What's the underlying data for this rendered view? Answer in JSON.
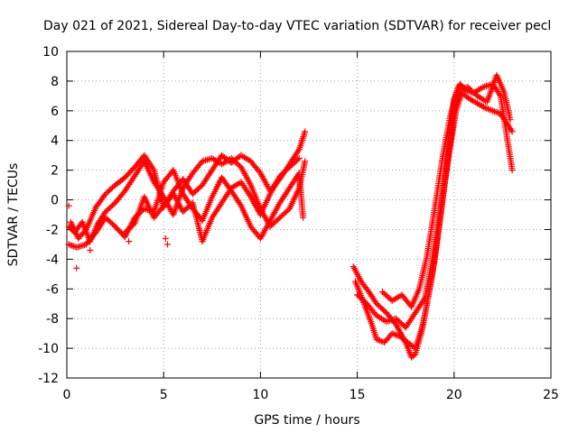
{
  "chart_data": {
    "type": "scatter",
    "title": "Day 021 of 2021, Sidereal Day-to-day VTEC variation (SDTVAR) for receiver pecl",
    "xlabel": "GPS time / hours",
    "ylabel": "SDTVAR / TECUs",
    "xlim": [
      0,
      25
    ],
    "ylim": [
      -12,
      10
    ],
    "xticks": [
      0,
      5,
      10,
      15,
      20,
      25
    ],
    "yticks": [
      -12,
      -10,
      -8,
      -6,
      -4,
      -2,
      0,
      2,
      4,
      6,
      8,
      10
    ],
    "grid": true,
    "marker": "plus",
    "series": [
      {
        "name": "SDTVAR",
        "color": "#ff0000",
        "tracks": [
          [
            [
              0.1,
              -1.8
            ],
            [
              0.4,
              -2.2
            ],
            [
              0.8,
              -1.5
            ],
            [
              1.2,
              -2.8
            ],
            [
              1.6,
              -1.6
            ],
            [
              2.0,
              -0.8
            ],
            [
              2.5,
              -0.2
            ],
            [
              3.0,
              0.6
            ],
            [
              3.5,
              1.6
            ],
            [
              4.0,
              2.6
            ],
            [
              4.5,
              1.2
            ],
            [
              5.0,
              0.2
            ],
            [
              5.5,
              -1.0
            ],
            [
              6.0,
              0.8
            ],
            [
              6.5,
              1.8
            ],
            [
              7.0,
              2.6
            ],
            [
              7.5,
              2.8
            ],
            [
              8.0,
              2.4
            ],
            [
              8.5,
              2.8
            ],
            [
              9.0,
              2.2
            ],
            [
              9.5,
              1.0
            ],
            [
              10.0,
              -0.6
            ],
            [
              10.5,
              -1.8
            ],
            [
              11.0,
              -1.2
            ],
            [
              11.5,
              -0.6
            ],
            [
              12.0,
              0.8
            ],
            [
              12.3,
              2.6
            ]
          ],
          [
            [
              0.1,
              -3.0
            ],
            [
              0.5,
              -3.2
            ],
            [
              1.0,
              -3.0
            ],
            [
              1.5,
              -2.2
            ],
            [
              2.0,
              -1.2
            ],
            [
              2.5,
              -1.8
            ],
            [
              3.0,
              -2.5
            ],
            [
              3.5,
              -1.2
            ],
            [
              4.0,
              -0.6
            ],
            [
              4.5,
              -0.8
            ],
            [
              5.0,
              1.2
            ],
            [
              5.5,
              2.0
            ],
            [
              6.0,
              0.4
            ],
            [
              6.5,
              -0.6
            ],
            [
              7.0,
              -1.4
            ],
            [
              7.5,
              0.2
            ],
            [
              8.0,
              1.5
            ],
            [
              8.5,
              0.6
            ],
            [
              9.0,
              -0.4
            ],
            [
              9.5,
              -1.8
            ],
            [
              10.0,
              -2.6
            ],
            [
              10.5,
              -1.4
            ],
            [
              11.0,
              -0.2
            ],
            [
              11.5,
              0.8
            ],
            [
              12.0,
              1.8
            ],
            [
              12.2,
              -1.2
            ]
          ],
          [
            [
              0.2,
              -1.5
            ],
            [
              0.6,
              -2.6
            ],
            [
              1.0,
              -2.0
            ],
            [
              1.5,
              -0.5
            ],
            [
              2.0,
              0.4
            ],
            [
              2.5,
              1.0
            ],
            [
              3.0,
              1.5
            ],
            [
              3.5,
              2.2
            ],
            [
              4.0,
              3.0
            ],
            [
              4.5,
              2.0
            ],
            [
              5.0,
              -0.5
            ],
            [
              5.5,
              0.6
            ],
            [
              6.0,
              1.4
            ],
            [
              6.5,
              0.4
            ],
            [
              7.0,
              1.0
            ],
            [
              7.5,
              2.0
            ],
            [
              8.0,
              3.0
            ],
            [
              8.5,
              2.5
            ],
            [
              9.0,
              3.0
            ],
            [
              9.5,
              2.6
            ],
            [
              10.0,
              1.8
            ],
            [
              10.5,
              0.6
            ],
            [
              11.0,
              1.4
            ],
            [
              11.5,
              2.4
            ],
            [
              12.0,
              3.4
            ],
            [
              12.3,
              4.6
            ]
          ],
          [
            [
              3.0,
              -2.2
            ],
            [
              3.5,
              -1.6
            ],
            [
              4.0,
              0.2
            ],
            [
              4.5,
              -1.2
            ],
            [
              5.0,
              -0.4
            ],
            [
              5.5,
              0.4
            ],
            [
              6.0,
              -0.8
            ],
            [
              6.5,
              -0.2
            ],
            [
              7.0,
              -2.8
            ],
            [
              7.5,
              -1.2
            ],
            [
              8.0,
              -0.2
            ],
            [
              8.5,
              0.8
            ],
            [
              9.0,
              1.2
            ],
            [
              9.5,
              0.2
            ],
            [
              10.0,
              -1.0
            ],
            [
              10.5,
              0.4
            ],
            [
              11.0,
              1.6
            ],
            [
              11.5,
              2.2
            ],
            [
              12.0,
              2.8
            ]
          ],
          [
            [
              14.8,
              -4.5
            ],
            [
              15.2,
              -5.5
            ],
            [
              15.6,
              -6.2
            ],
            [
              16.0,
              -7.0
            ],
            [
              16.5,
              -7.6
            ],
            [
              17.0,
              -8.4
            ],
            [
              17.5,
              -9.6
            ],
            [
              17.8,
              -10.6
            ],
            [
              18.0,
              -10.4
            ],
            [
              18.3,
              -9.0
            ],
            [
              18.6,
              -7.0
            ],
            [
              19.0,
              -4.0
            ],
            [
              19.3,
              -1.0
            ],
            [
              19.6,
              2.0
            ],
            [
              19.8,
              4.5
            ],
            [
              20.0,
              6.8
            ],
            [
              20.3,
              7.8
            ],
            [
              20.6,
              7.4
            ],
            [
              21.0,
              7.2
            ],
            [
              21.5,
              7.6
            ],
            [
              22.0,
              7.8
            ],
            [
              22.4,
              7.0
            ],
            [
              22.7,
              4.5
            ],
            [
              23.0,
              2.0
            ]
          ],
          [
            [
              14.9,
              -5.5
            ],
            [
              15.3,
              -6.8
            ],
            [
              15.7,
              -8.2
            ],
            [
              16.0,
              -9.4
            ],
            [
              16.4,
              -9.6
            ],
            [
              16.8,
              -9.0
            ],
            [
              17.2,
              -9.2
            ],
            [
              17.6,
              -9.6
            ],
            [
              18.0,
              -10.0
            ],
            [
              18.4,
              -8.4
            ],
            [
              18.8,
              -5.6
            ],
            [
              19.2,
              -2.0
            ],
            [
              19.5,
              1.0
            ],
            [
              19.8,
              3.6
            ],
            [
              20.1,
              6.0
            ],
            [
              20.4,
              7.2
            ],
            [
              20.8,
              6.8
            ],
            [
              21.2,
              6.5
            ],
            [
              21.6,
              6.2
            ],
            [
              22.0,
              6.0
            ],
            [
              22.4,
              5.8
            ],
            [
              22.8,
              5.0
            ],
            [
              23.0,
              4.6
            ]
          ],
          [
            [
              15.0,
              -6.4
            ],
            [
              15.5,
              -7.0
            ],
            [
              16.0,
              -7.8
            ],
            [
              16.5,
              -8.2
            ],
            [
              17.0,
              -8.0
            ],
            [
              17.5,
              -8.6
            ],
            [
              18.0,
              -7.6
            ],
            [
              18.5,
              -6.6
            ],
            [
              19.0,
              -3.2
            ],
            [
              19.4,
              0.2
            ],
            [
              19.7,
              3.0
            ],
            [
              20.0,
              5.6
            ],
            [
              20.3,
              7.4
            ],
            [
              20.7,
              7.6
            ],
            [
              21.2,
              7.0
            ],
            [
              21.7,
              6.6
            ],
            [
              22.2,
              8.4
            ],
            [
              22.6,
              7.2
            ],
            [
              22.9,
              5.4
            ]
          ],
          [
            [
              16.3,
              -6.2
            ],
            [
              16.8,
              -6.8
            ],
            [
              17.3,
              -6.4
            ],
            [
              17.8,
              -7.2
            ],
            [
              18.2,
              -6.0
            ],
            [
              18.6,
              -3.8
            ],
            [
              19.0,
              -0.6
            ],
            [
              19.4,
              2.8
            ],
            [
              19.8,
              5.6
            ],
            [
              20.2,
              7.6
            ]
          ]
        ],
        "isolated": [
          [
            0.5,
            -4.6
          ],
          [
            1.2,
            -3.4
          ],
          [
            0.1,
            -0.4
          ],
          [
            5.1,
            -2.6
          ],
          [
            5.2,
            -3.0
          ],
          [
            3.2,
            -2.8
          ]
        ]
      }
    ]
  }
}
